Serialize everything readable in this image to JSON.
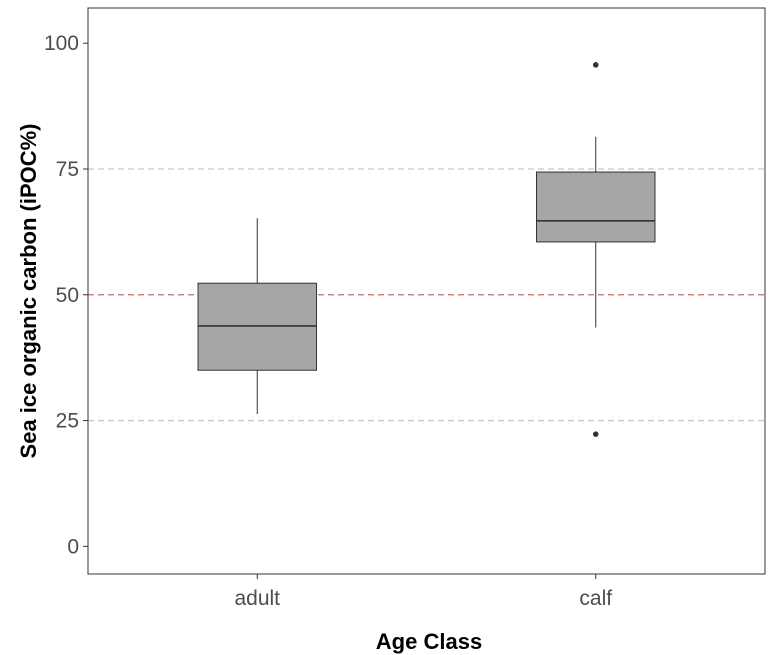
{
  "chart_data": {
    "type": "box",
    "xlabel": "Age Class",
    "ylabel": "Sea ice organic carbon (iPOC%)",
    "ylim": [
      -5.5,
      107
    ],
    "yticks": [
      0,
      25,
      50,
      75,
      100
    ],
    "ytick_labels": [
      "0",
      "25",
      "50",
      "75",
      "100"
    ],
    "categories": [
      "adult",
      "calf"
    ],
    "boxes": [
      {
        "category": "adult",
        "whisker_low": 26.3,
        "q1": 35.0,
        "median": 43.8,
        "q3": 52.3,
        "whisker_high": 65.2,
        "outliers": []
      },
      {
        "category": "calf",
        "whisker_low": 43.5,
        "q1": 60.5,
        "median": 64.7,
        "q3": 74.4,
        "whisker_high": 81.4,
        "outliers": [
          95.7,
          22.3
        ]
      }
    ],
    "reference_lines": [
      {
        "y": 25,
        "color": "#c8c8c8",
        "style": "dashed"
      },
      {
        "y": 50,
        "color": "#e06666",
        "style": "dashed"
      },
      {
        "y": 75,
        "color": "#c8c8c8",
        "style": "dashed"
      }
    ],
    "box_fill": "#a6a6a6",
    "grid": false,
    "legend": "none"
  }
}
